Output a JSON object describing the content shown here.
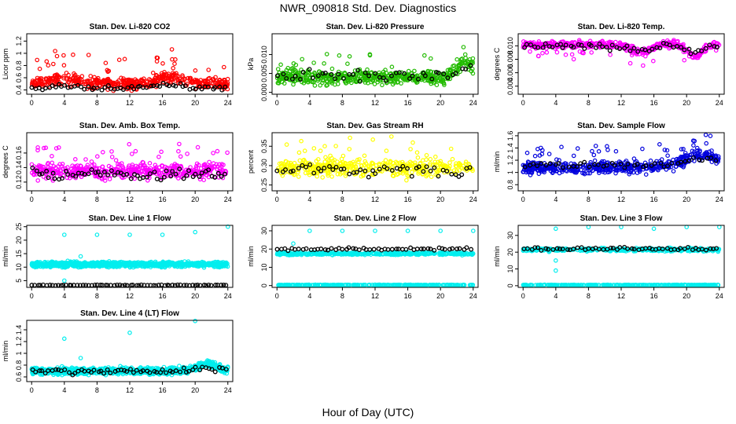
{
  "page": {
    "title": "NWR_090818  Std. Dev. Diagnostics",
    "x_axis_title": "Hour of Day (UTC)"
  },
  "chart_data": [
    {
      "type": "scatter",
      "title": "Stan. Dev. Li-820 CO2",
      "ylabel": "Licor ppm",
      "x_ticks": [
        0,
        4,
        8,
        12,
        16,
        20,
        24
      ],
      "y_ticks": [
        0.4,
        0.6,
        0.8,
        1.0,
        1.2
      ],
      "xlim": [
        -0.6,
        24.6
      ],
      "ylim": [
        0.33,
        1.32
      ],
      "color": "#ff0000",
      "gen": {
        "kind": "noise",
        "base": 0.5,
        "amp": 0.09,
        "spike": 0.4,
        "bumps": [
          [
            4,
            0.08,
            2.5
          ],
          [
            17,
            0.1,
            2.5
          ]
        ],
        "n": 500,
        "black_n": 60,
        "black_base": 0.43,
        "black_amp": 0.04,
        "seed": 11
      }
    },
    {
      "type": "scatter",
      "title": "Stan. Dev. Li-820 Pressure",
      "ylabel": "kPa",
      "x_ticks": [
        0,
        4,
        8,
        12,
        16,
        20,
        24
      ],
      "y_ticks": [
        0.0,
        0.005,
        0.01
      ],
      "y_labels": [
        "0.000",
        "0.005",
        "0.010"
      ],
      "xlim": [
        -0.6,
        24.6
      ],
      "ylim": [
        -0.0005,
        0.0155
      ],
      "color": "#22bb00",
      "gen": {
        "kind": "noise",
        "base": 0.004,
        "amp": 0.0018,
        "spike": 0.006,
        "bumps": [
          [
            23,
            0.004,
            1.5
          ]
        ],
        "n": 520,
        "black_n": 45,
        "black_base": 0.0045,
        "black_amp": 0.0015,
        "seed": 23
      }
    },
    {
      "type": "scatter",
      "title": "Stan. Dev. Li-820 Temp.",
      "ylabel": "degrees C",
      "x_ticks": [
        0,
        4,
        8,
        12,
        16,
        20,
        24
      ],
      "y_ticks": [
        0.004,
        0.006,
        0.008,
        0.01
      ],
      "y_labels": [
        "0.004",
        "0.006",
        "0.008",
        "0.010"
      ],
      "xlim": [
        -0.6,
        24.6
      ],
      "ylim": [
        0.0028,
        0.0118
      ],
      "color": "#ff00ff",
      "gen": {
        "kind": "noise",
        "base": 0.0102,
        "amp": 0.0005,
        "spike": -0.002,
        "bumps": [
          [
            14.5,
            -0.0012,
            1.5
          ],
          [
            21,
            -0.0018,
            1.2
          ]
        ],
        "n": 500,
        "black_n": 55,
        "black_base": 0.0099,
        "black_amp": 0.0005,
        "seed": 37
      }
    },
    {
      "type": "scatter",
      "title": "Stan. Dev. Amb. Box Temp.",
      "ylabel": "degrees C",
      "x_ticks": [
        0,
        4,
        8,
        12,
        16,
        20,
        24
      ],
      "y_ticks": [
        0.12,
        0.14,
        0.16
      ],
      "xlim": [
        -0.6,
        24.6
      ],
      "ylim": [
        0.108,
        0.188
      ],
      "color": "#ff00ff",
      "gen": {
        "kind": "noise",
        "base": 0.135,
        "amp": 0.01,
        "spike": 0.03,
        "bumps": [],
        "n": 480,
        "black_n": 60,
        "black_base": 0.131,
        "black_amp": 0.008,
        "seed": 41
      }
    },
    {
      "type": "scatter",
      "title": "Stan. Dev. Gas Stream RH",
      "ylabel": "percent",
      "x_ticks": [
        0,
        4,
        8,
        12,
        16,
        20,
        24
      ],
      "y_ticks": [
        0.25,
        0.3,
        0.35
      ],
      "y_labels": [
        "0.25",
        "0.30",
        "0.35"
      ],
      "xlim": [
        -0.6,
        24.6
      ],
      "ylim": [
        0.235,
        0.385
      ],
      "color": "#ffff00",
      "gen": {
        "kind": "noise",
        "base": 0.295,
        "amp": 0.022,
        "spike": 0.07,
        "bumps": [],
        "n": 420,
        "black_n": 50,
        "black_base": 0.29,
        "black_amp": 0.018,
        "seed": 53
      }
    },
    {
      "type": "scatter",
      "title": "Stan. Dev. Sample Flow",
      "ylabel": "ml/min",
      "x_ticks": [
        0,
        4,
        8,
        12,
        16,
        20,
        24
      ],
      "y_ticks": [
        0.8,
        1.0,
        1.2,
        1.4,
        1.6
      ],
      "xlim": [
        -0.6,
        24.6
      ],
      "ylim": [
        0.7,
        1.65
      ],
      "color": "#0000dd",
      "gen": {
        "kind": "noise",
        "base": 1.08,
        "amp": 0.09,
        "spike": 0.3,
        "bumps": [
          [
            22,
            0.22,
            3
          ]
        ],
        "n": 520,
        "black_n": 45,
        "black_base": 1.12,
        "black_amp": 0.06,
        "seed": 67
      }
    },
    {
      "type": "scatter",
      "title": "Stan. Dev. Line 1 Flow",
      "ylabel": "ml/min",
      "x_ticks": [
        0,
        4,
        8,
        12,
        16,
        20,
        24
      ],
      "y_ticks": [
        5,
        10,
        15,
        20,
        25
      ],
      "xlim": [
        -0.6,
        24.6
      ],
      "ylim": [
        2.5,
        25.5
      ],
      "color": "#00eeee",
      "gen": {
        "kind": "band",
        "base": 11,
        "amp": 0.9,
        "outliers": [
          [
            4,
            22
          ],
          [
            8,
            22
          ],
          [
            12,
            22
          ],
          [
            16,
            22
          ],
          [
            20,
            23
          ],
          [
            24,
            25
          ],
          [
            6,
            14
          ],
          [
            4,
            5
          ]
        ],
        "n": 900,
        "black_n": 70,
        "black_base": 3.3,
        "black_amp": 0.15,
        "seed": 71
      }
    },
    {
      "type": "scatter",
      "title": "Stan. Dev. Line 2 Flow",
      "ylabel": "ml/min",
      "x_ticks": [
        0,
        4,
        8,
        12,
        16,
        20,
        24
      ],
      "y_ticks": [
        0,
        10,
        20,
        30
      ],
      "xlim": [
        -0.6,
        24.6
      ],
      "ylim": [
        -1,
        33
      ],
      "color": "#00eeee",
      "gen": {
        "kind": "band2",
        "base": 17.5,
        "amp": 0.7,
        "base2": 0.3,
        "outliers": [
          [
            4,
            30
          ],
          [
            8,
            30
          ],
          [
            12,
            30
          ],
          [
            16,
            30
          ],
          [
            20,
            30
          ],
          [
            24,
            30
          ],
          [
            2,
            23
          ]
        ],
        "n": 700,
        "black_n": 55,
        "black_base": 20,
        "black_amp": 0.8,
        "seed": 83
      }
    },
    {
      "type": "scatter",
      "title": "Stan. Dev. Line 3 Flow",
      "ylabel": "ml/min",
      "x_ticks": [
        0,
        4,
        8,
        12,
        16,
        20,
        24
      ],
      "y_ticks": [
        0,
        10,
        20,
        30
      ],
      "xlim": [
        -0.6,
        24.6
      ],
      "ylim": [
        -1,
        36
      ],
      "color": "#00eeee",
      "gen": {
        "kind": "band2",
        "base": 21.5,
        "amp": 1.0,
        "base2": 0.4,
        "outliers": [
          [
            4,
            34
          ],
          [
            8,
            35
          ],
          [
            12,
            35
          ],
          [
            16,
            34
          ],
          [
            20,
            35
          ],
          [
            24,
            35
          ],
          [
            4,
            9
          ],
          [
            4,
            15
          ]
        ],
        "n": 700,
        "black_n": 55,
        "black_base": 22,
        "black_amp": 0.9,
        "seed": 97
      }
    },
    {
      "type": "scatter",
      "title": "Stan. Dev. Line 4 (LT) Flow",
      "ylabel": "ml/min",
      "x_ticks": [
        0,
        4,
        8,
        12,
        16,
        20,
        24
      ],
      "y_ticks": [
        0.6,
        0.8,
        1.0,
        1.2,
        1.4
      ],
      "xlim": [
        -0.6,
        24.6
      ],
      "ylim": [
        0.52,
        1.56
      ],
      "color": "#00eeee",
      "gen": {
        "kind": "band",
        "base": 0.7,
        "amp": 0.055,
        "outliers": [
          [
            4,
            1.25
          ],
          [
            12,
            1.35
          ],
          [
            20,
            1.55
          ],
          [
            6,
            0.92
          ]
        ],
        "bumps": [
          [
            21.5,
            0.12,
            1.6
          ]
        ],
        "n": 900,
        "black_n": 60,
        "black_base": 0.7,
        "black_amp": 0.05,
        "seed": 109
      }
    }
  ]
}
